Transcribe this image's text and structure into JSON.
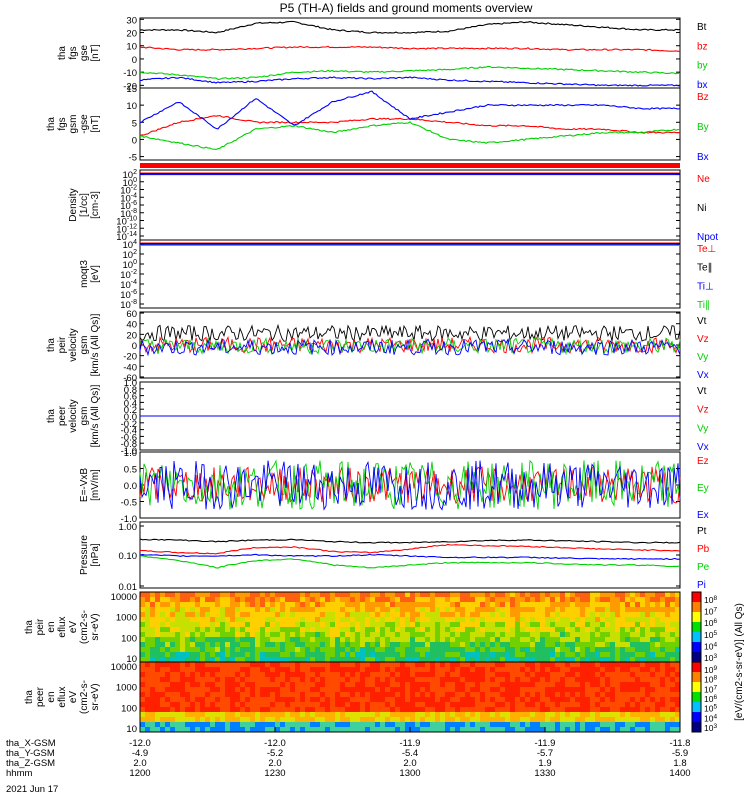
{
  "page": {
    "title": "P5 (TH-A) fields and ground moments overview"
  },
  "colors": {
    "black": "#000000",
    "red": "#ff0000",
    "green": "#00d000",
    "blue": "#0000ff"
  },
  "chart_data": [
    {
      "type": "line",
      "ylabel": [
        "tha",
        "fgs",
        "gse",
        "[nT]"
      ],
      "yticks": [
        30,
        20,
        10,
        0,
        -10,
        -20
      ],
      "ylim": [
        -22,
        31
      ],
      "series": [
        {
          "name": "Bt",
          "color": "#000000",
          "values": [
            22,
            22,
            20,
            27,
            28,
            22,
            20,
            20,
            21,
            26,
            28,
            26,
            24,
            22,
            22
          ]
        },
        {
          "name": "bz",
          "color": "#ff0000",
          "values": [
            9,
            7,
            7,
            8,
            9,
            9,
            9,
            8,
            8,
            8,
            8,
            7,
            7,
            7,
            6
          ]
        },
        {
          "name": "by",
          "color": "#00d000",
          "values": [
            -10,
            -12,
            -15,
            -14,
            -10,
            -9,
            -10,
            -9,
            -8,
            -6,
            -7,
            -8,
            -9,
            -10,
            -11
          ]
        },
        {
          "name": "bx",
          "color": "#0000ff",
          "values": [
            -16,
            -14,
            -18,
            -17,
            -15,
            -14,
            -15,
            -14,
            -16,
            -17,
            -18,
            -19,
            -20,
            -20,
            -20
          ]
        }
      ]
    },
    {
      "type": "line",
      "ylabel": [
        "tha",
        "fgs",
        "gsm",
        "-gse",
        "[nT]"
      ],
      "yticks": [
        15,
        10,
        5,
        0,
        -5
      ],
      "ylim": [
        -6,
        15
      ],
      "series": [
        {
          "name": "Bz",
          "color": "#ff0000",
          "values": [
            1,
            5,
            7,
            5,
            5,
            5,
            6,
            6,
            5,
            4,
            4,
            3,
            3,
            2,
            2
          ]
        },
        {
          "name": "By",
          "color": "#00d000",
          "values": [
            1,
            -1,
            -3,
            3,
            4,
            2,
            4,
            5,
            0,
            -1,
            0,
            1,
            2,
            2,
            3
          ]
        },
        {
          "name": "Bx",
          "color": "#0000ff",
          "values": [
            5,
            11,
            3,
            12,
            4,
            11,
            14,
            6,
            8,
            10,
            10,
            10,
            10,
            9,
            9
          ]
        }
      ]
    },
    {
      "type": "line",
      "ylabel": [
        "Density",
        "[1/cc]",
        "[cm-3]"
      ],
      "yticks": [
        "10^2",
        "10^0",
        "10^-2",
        "10^-4",
        "10^-6",
        "10^-8",
        "10^-10",
        "10^-12",
        "10^-14"
      ],
      "series": [
        {
          "name": "Ne",
          "color": "#ff0000"
        },
        {
          "name": "Ni",
          "color": "#000000"
        },
        {
          "name": "Npot",
          "color": "#0000ff"
        }
      ]
    },
    {
      "type": "line",
      "ylabel": [
        "moqt3",
        "[eV]"
      ],
      "yticks": [
        "10^4",
        "10^2",
        "10^0",
        "10^-2",
        "10^-4",
        "10^-6",
        "10^-8"
      ],
      "series": [
        {
          "name": "Te⊥",
          "color": "#ff0000"
        },
        {
          "name": "Te∥",
          "color": "#000000"
        },
        {
          "name": "Ti⊥",
          "color": "#0000ff"
        },
        {
          "name": "Ti∥",
          "color": "#00d000"
        }
      ]
    },
    {
      "type": "line",
      "ylabel": [
        "tha",
        "peir",
        "velocity",
        "gsm",
        "[km/s (All Qs)]"
      ],
      "yticks": [
        60,
        40,
        20,
        0,
        -20,
        -40,
        -60
      ],
      "ylim": [
        -62,
        62
      ],
      "series": [
        {
          "name": "Vt",
          "color": "#000000"
        },
        {
          "name": "Vz",
          "color": "#ff0000"
        },
        {
          "name": "Vy",
          "color": "#00d000"
        },
        {
          "name": "Vx",
          "color": "#0000ff"
        }
      ]
    },
    {
      "type": "line",
      "ylabel": [
        "tha",
        "peer",
        "velocity",
        "gsm",
        "[km/s (All Qs)]"
      ],
      "yticks": [
        "1.0",
        "0.8",
        "0.6",
        "0.4",
        "0.2",
        "0.0",
        "-0.2",
        "-0.4",
        "-0.6",
        "-0.8",
        "-1.0"
      ],
      "ylim": [
        -1.0,
        1.0
      ],
      "series": [
        {
          "name": "Vt",
          "color": "#000000"
        },
        {
          "name": "Vz",
          "color": "#ff0000"
        },
        {
          "name": "Vy",
          "color": "#00d000"
        },
        {
          "name": "Vx",
          "color": "#0000ff"
        }
      ]
    },
    {
      "type": "line",
      "ylabel": [
        "E=-VxB",
        "[mV/m]"
      ],
      "yticks": [
        "1.0",
        "0.5",
        "0.0",
        "-0.5",
        "-1.0"
      ],
      "ylim": [
        -1.0,
        1.0
      ],
      "series": [
        {
          "name": "Ez",
          "color": "#ff0000"
        },
        {
          "name": "Ey",
          "color": "#00d000"
        },
        {
          "name": "Ex",
          "color": "#0000ff"
        }
      ]
    },
    {
      "type": "line",
      "ylabel": [
        "Pressure",
        "[nPa]"
      ],
      "yticks": [
        "1.00",
        "0.10",
        "0.01"
      ],
      "yscale": "log",
      "series": [
        {
          "name": "Pt",
          "color": "#000000",
          "values": [
            0.36,
            0.34,
            0.3,
            0.34,
            0.35,
            0.3,
            0.28,
            0.28,
            0.3,
            0.33,
            0.34,
            0.32,
            0.3,
            0.28,
            0.28
          ]
        },
        {
          "name": "Pb",
          "color": "#ff0000",
          "values": [
            0.15,
            0.13,
            0.12,
            0.19,
            0.2,
            0.14,
            0.13,
            0.17,
            0.24,
            0.22,
            0.21,
            0.19,
            0.17,
            0.16,
            0.15
          ]
        },
        {
          "name": "Pe",
          "color": "#00d000",
          "values": [
            0.1,
            0.07,
            0.04,
            0.07,
            0.08,
            0.05,
            0.04,
            0.05,
            0.06,
            0.06,
            0.06,
            0.055,
            0.05,
            0.05,
            0.045
          ]
        },
        {
          "name": "Pi",
          "color": "#0000ff",
          "values": [
            0.11,
            0.1,
            0.1,
            0.11,
            0.1,
            0.1,
            0.11,
            0.1,
            0.09,
            0.09,
            0.09,
            0.085,
            0.08,
            0.08,
            0.08
          ]
        }
      ]
    },
    {
      "type": "heatmap",
      "ylabel": [
        "tha",
        "peir",
        "en",
        "eflux",
        "eV",
        "(cm2-s-",
        "sr-eV)"
      ],
      "yticks": [
        "10000",
        "1000",
        "100",
        "10"
      ]
    },
    {
      "type": "heatmap",
      "ylabel": [
        "tha",
        "peer",
        "en",
        "eflux",
        "eV",
        "(cm2-s-",
        "sr-eV)"
      ],
      "yticks": [
        "10000",
        "1000",
        "100",
        "10"
      ]
    }
  ],
  "colorbar": {
    "label": "[eV/(cm2-s-sr-eV)] (All Qs)",
    "ticks_top": [
      "10^8",
      "10^7",
      "10^6",
      "10^5",
      "10^4",
      "10^3"
    ],
    "ticks_bottom": [
      "10^9",
      "10^8",
      "10^7",
      "10^6",
      "10^5",
      "10^4",
      "10^3"
    ]
  },
  "xaxis": {
    "tick_rows": [
      {
        "label": "tha_X-GSM",
        "values": [
          "-12.0",
          "-12.0",
          "-11.9",
          "-11.9",
          "-11.8"
        ]
      },
      {
        "label": "tha_Y-GSM",
        "values": [
          "-4.9",
          "-5.2",
          "-5.4",
          "-5.7",
          "-5.9"
        ]
      },
      {
        "label": "tha_Z-GSM",
        "values": [
          "2.0",
          "2.0",
          "2.0",
          "1.9",
          "1.8"
        ]
      },
      {
        "label": "hhmm",
        "values": [
          "1200",
          "1230",
          "1300",
          "1330",
          "1400"
        ]
      }
    ],
    "date": "2021 Jun 17"
  }
}
